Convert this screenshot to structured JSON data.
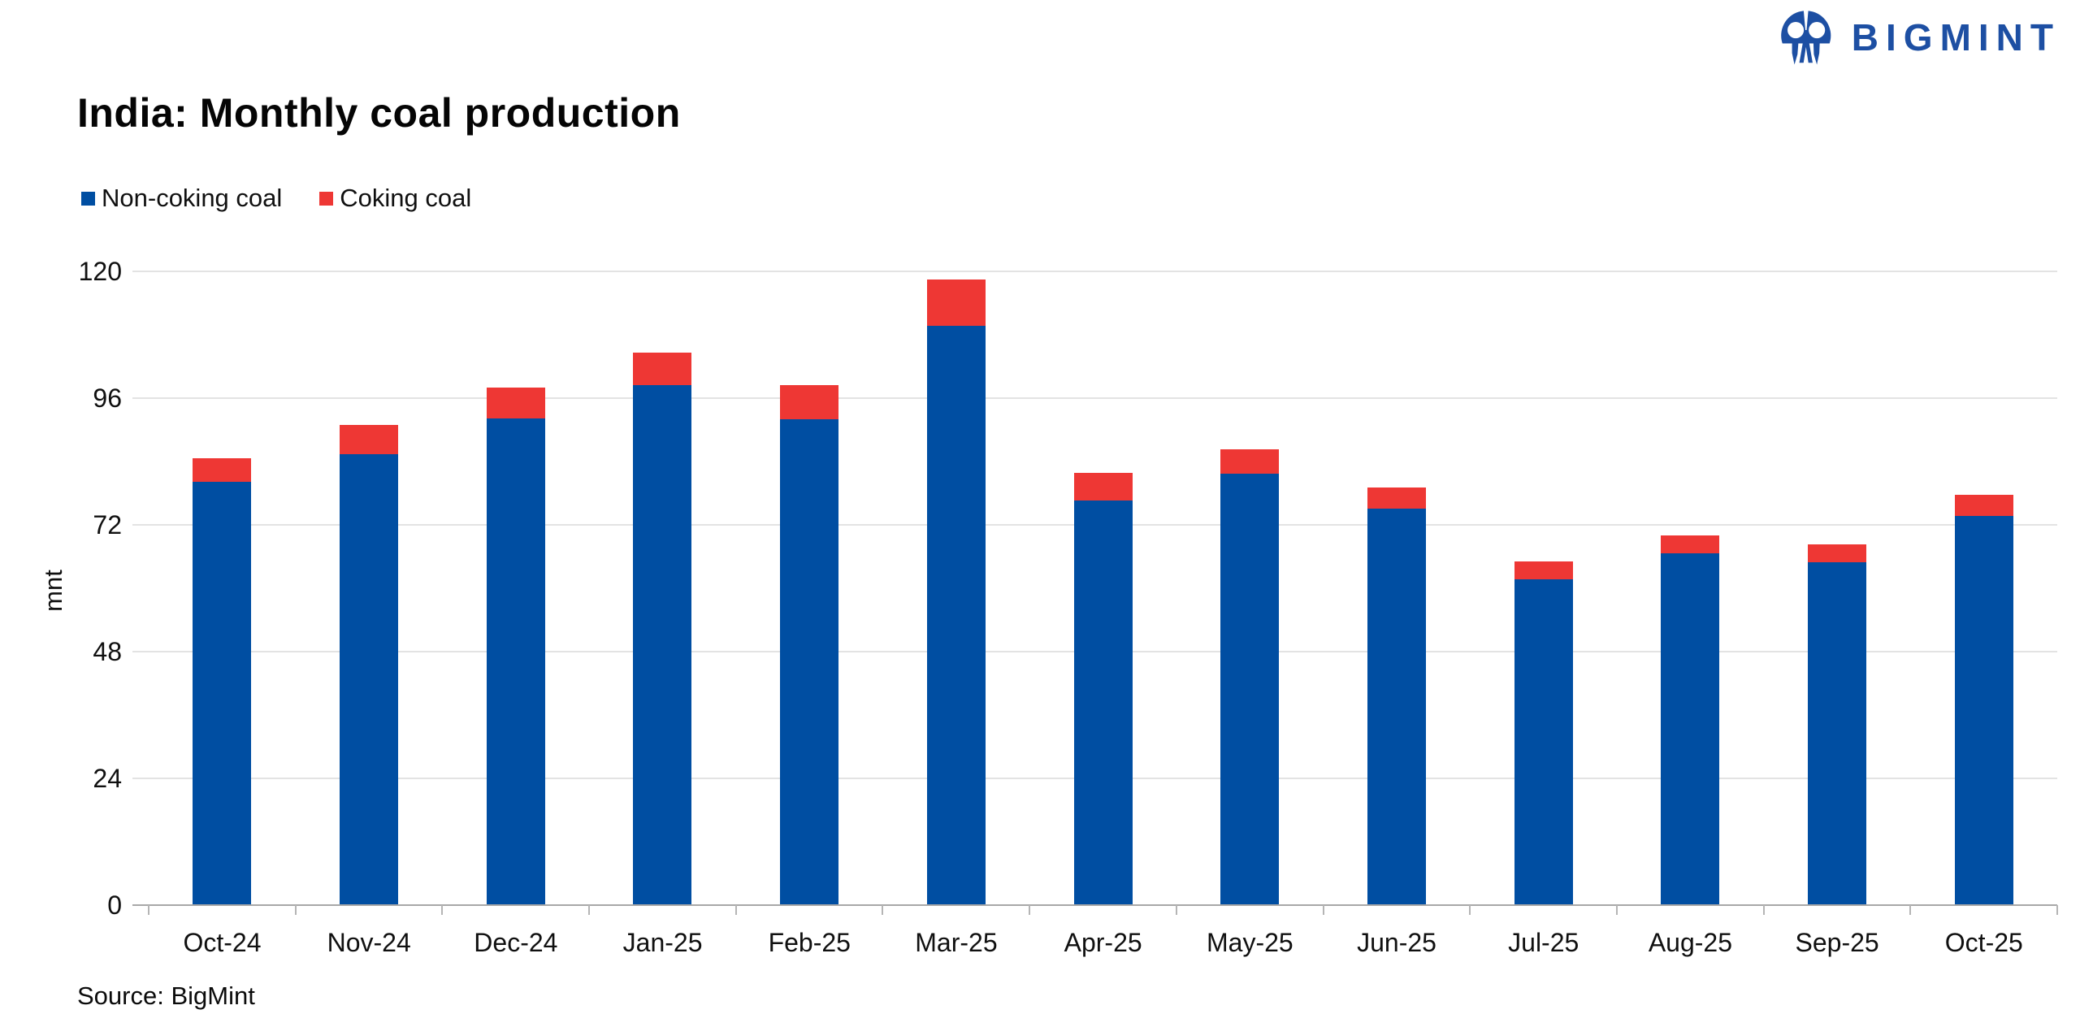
{
  "logo": {
    "brand": "BIGMINT",
    "icon": "bigmint-emblem-icon",
    "color": "#1D4FA3"
  },
  "title": "India: Monthly coal production",
  "legend": [
    {
      "label": "Non-coking coal",
      "color": "#004EA2"
    },
    {
      "label": "Coking coal",
      "color": "#EE3734"
    }
  ],
  "y_axis": {
    "label": "mnt",
    "ticks": [
      0,
      24,
      48,
      72,
      96,
      120
    ]
  },
  "source": "Source: BigMint",
  "chart_data": {
    "type": "bar",
    "stacked": true,
    "title": "India: Monthly coal production",
    "xlabel": "",
    "ylabel": "mnt",
    "ylim": [
      0,
      120
    ],
    "grid": true,
    "legend_position": "top-left",
    "categories": [
      "Oct-24",
      "Nov-24",
      "Dec-24",
      "Jan-25",
      "Feb-25",
      "Mar-25",
      "Apr-25",
      "May-25",
      "Jun-25",
      "Jul-25",
      "Aug-25",
      "Sep-25",
      "Oct-25"
    ],
    "series": [
      {
        "name": "Non-coking coal",
        "color": "#004EA2",
        "values": [
          80.0,
          85.3,
          92.0,
          98.3,
          91.8,
          109.6,
          76.4,
          81.5,
          75.0,
          61.5,
          66.4,
          64.8,
          73.5
        ]
      },
      {
        "name": "Coking coal",
        "color": "#EE3734",
        "values": [
          4.5,
          5.5,
          5.8,
          6.1,
          6.5,
          8.7,
          5.3,
          4.7,
          3.9,
          3.4,
          3.4,
          3.4,
          4.1
        ]
      }
    ]
  }
}
